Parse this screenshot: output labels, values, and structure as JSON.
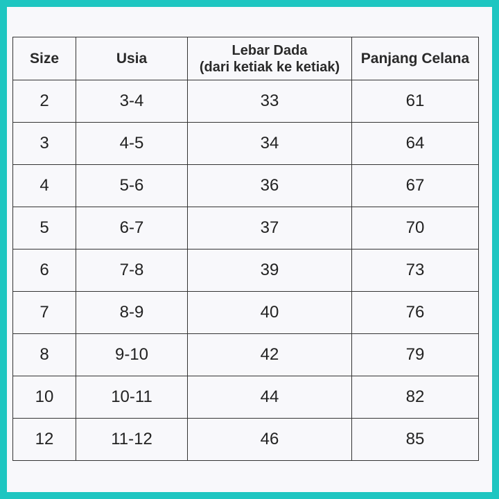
{
  "table": {
    "headers": [
      "Size",
      "Usia",
      "Lebar Dada",
      "(dari ketiak ke ketiak)",
      "Panjang Celana"
    ],
    "rows": [
      [
        "2",
        "3-4",
        "33",
        "61"
      ],
      [
        "3",
        "4-5",
        "34",
        "64"
      ],
      [
        "4",
        "5-6",
        "36",
        "67"
      ],
      [
        "5",
        "6-7",
        "37",
        "70"
      ],
      [
        "6",
        "7-8",
        "39",
        "73"
      ],
      [
        "7",
        "8-9",
        "40",
        "76"
      ],
      [
        "8",
        "9-10",
        "42",
        "79"
      ],
      [
        "10",
        "10-11",
        "44",
        "82"
      ],
      [
        "12",
        "11-12",
        "46",
        "85"
      ]
    ]
  },
  "colors": {
    "frame": "#1ec6c1",
    "background": "#f8f8fb",
    "grid": "#333333"
  }
}
